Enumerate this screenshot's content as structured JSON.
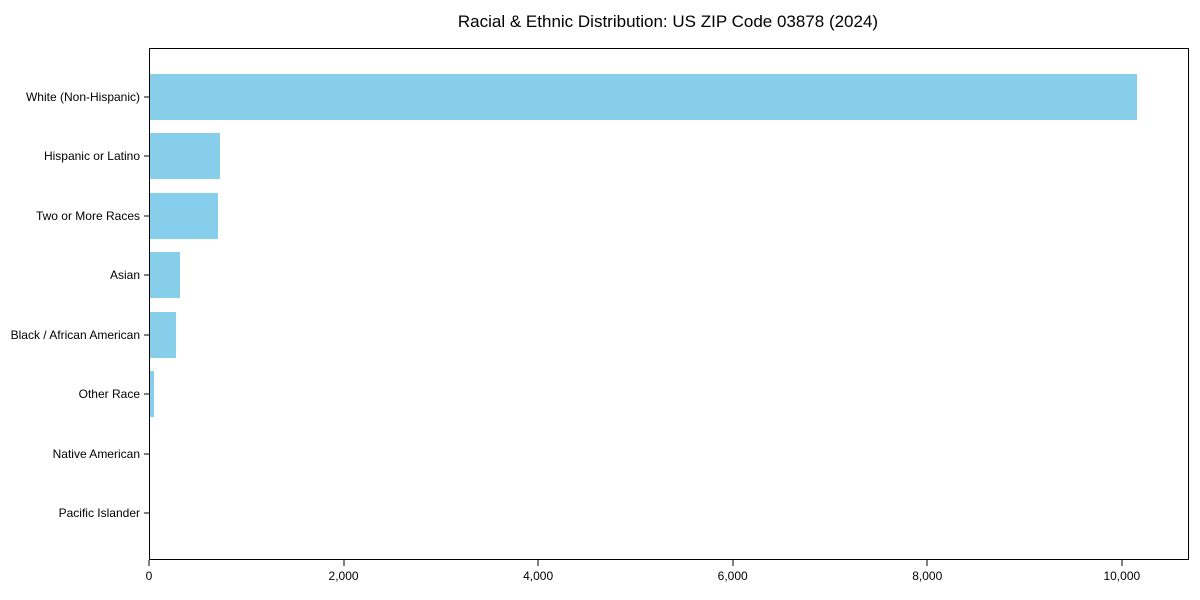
{
  "chart_data": {
    "type": "bar",
    "orientation": "horizontal",
    "title": "Racial & Ethnic Distribution: US ZIP Code 03878 (2024)",
    "categories": [
      "White (Non-Hispanic)",
      "Hispanic or Latino",
      "Two or More Races",
      "Asian",
      "Black / African American",
      "Other Race",
      "Native American",
      "Pacific Islander"
    ],
    "values": [
      10150,
      720,
      700,
      310,
      265,
      45,
      0,
      0
    ],
    "xlabel": "",
    "ylabel": "",
    "xlim": [
      0,
      10670
    ],
    "x_ticks": [
      0,
      2000,
      4000,
      6000,
      8000,
      10000
    ],
    "x_tick_labels": [
      "0",
      "2,000",
      "4,000",
      "6,000",
      "8,000",
      "10,000"
    ],
    "bar_color": "#87CEEB",
    "axis_color": "#000000",
    "grid": false,
    "legend": null
  }
}
